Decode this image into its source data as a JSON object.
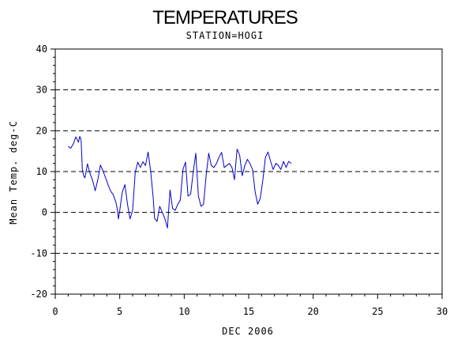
{
  "chart_data": {
    "type": "line",
    "title": "TEMPERATURES",
    "subtitle": "STATION=HOGI",
    "xlabel": "DEC 2006",
    "ylabel": "Mean Temp. deg-C",
    "xlim": [
      0,
      30
    ],
    "ylim": [
      -20,
      40
    ],
    "xticks": [
      0,
      5,
      10,
      15,
      20,
      25,
      30
    ],
    "yticks": [
      -20,
      -10,
      0,
      10,
      20,
      30,
      40
    ],
    "grid": "horizontal dashed",
    "colors": {
      "series": "#0000cc",
      "axis": "#000000",
      "grid": "#000000"
    },
    "series": [
      {
        "x": [
          1.0,
          1.2,
          1.4,
          1.6,
          1.8,
          1.9,
          2.0,
          2.1,
          2.2,
          2.3,
          2.5,
          2.7,
          2.9,
          3.1,
          3.3,
          3.5,
          3.7,
          3.9,
          4.1,
          4.3,
          4.5,
          4.7,
          4.8,
          4.9,
          5.0,
          5.2,
          5.4,
          5.6,
          5.8,
          6.0,
          6.2,
          6.4,
          6.6,
          6.8,
          7.0,
          7.2,
          7.4,
          7.6,
          7.7,
          7.9,
          8.1,
          8.3,
          8.5,
          8.7,
          8.9,
          9.1,
          9.3,
          9.5,
          9.7,
          9.9,
          10.1,
          10.3,
          10.5,
          10.7,
          10.9,
          11.1,
          11.3,
          11.5,
          11.7,
          11.9,
          12.1,
          12.3,
          12.5,
          12.7,
          12.9,
          13.1,
          13.3,
          13.5,
          13.7,
          13.9,
          14.1,
          14.3,
          14.5,
          14.7,
          14.9,
          15.1,
          15.3,
          15.5,
          15.7,
          15.9,
          16.1,
          16.3,
          16.5,
          16.7,
          16.9,
          17.1,
          17.3,
          17.5,
          17.7,
          17.9,
          18.1,
          18.3
        ],
        "values": [
          16.2,
          15.7,
          16.8,
          18.5,
          17.2,
          18.6,
          17.8,
          10.5,
          9.0,
          8.5,
          11.9,
          9.5,
          7.8,
          5.3,
          8.0,
          11.6,
          10.2,
          8.5,
          6.7,
          5.2,
          4.3,
          2.5,
          1.0,
          -1.6,
          0.5,
          5.0,
          6.8,
          2.0,
          -1.6,
          0.5,
          9.8,
          12.3,
          11.0,
          12.4,
          11.5,
          14.8,
          10.0,
          3.5,
          -1.5,
          -2.2,
          1.5,
          0.0,
          -1.5,
          -3.8,
          5.5,
          1.0,
          0.5,
          2.0,
          3.0,
          10.5,
          12.3,
          4.0,
          4.5,
          10.0,
          14.5,
          4.0,
          1.5,
          2.0,
          9.0,
          14.5,
          11.5,
          11.0,
          12.0,
          13.5,
          14.7,
          11.0,
          11.5,
          12.0,
          11.0,
          8.0,
          15.5,
          14.0,
          9.0,
          11.5,
          13.0,
          12.0,
          10.5,
          5.0,
          2.0,
          3.5,
          8.0,
          13.5,
          14.8,
          12.5,
          10.5,
          12.0,
          11.5,
          10.5,
          12.5,
          11.0,
          12.5,
          12.0
        ]
      }
    ]
  }
}
